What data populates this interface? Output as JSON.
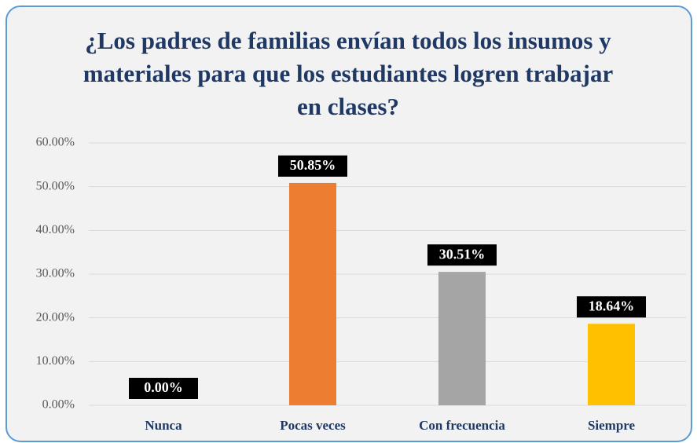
{
  "chart_data": {
    "type": "bar",
    "title": "¿Los padres de familias envían todos los insumos y materiales para que los estudiantes logren trabajar en clases?",
    "categories": [
      "Nunca",
      "Pocas veces",
      "Con frecuencia",
      "Siempre"
    ],
    "values": [
      0,
      50.85,
      30.51,
      18.64
    ],
    "value_labels": [
      "0.00%",
      "50.85%",
      "30.51%",
      "18.64%"
    ],
    "colors": [
      "#4472c4",
      "#ed7d31",
      "#a5a5a5",
      "#ffc000"
    ],
    "ylim": [
      0,
      60
    ],
    "yticks": [
      {
        "value": 0,
        "label": "0.00%"
      },
      {
        "value": 10,
        "label": "10.00%"
      },
      {
        "value": 20,
        "label": "20.00%"
      },
      {
        "value": 30,
        "label": "30.00%"
      },
      {
        "value": 40,
        "label": "40.00%"
      },
      {
        "value": 50,
        "label": "50.00%"
      },
      {
        "value": 60,
        "label": "60.00%"
      }
    ],
    "grid": true
  }
}
